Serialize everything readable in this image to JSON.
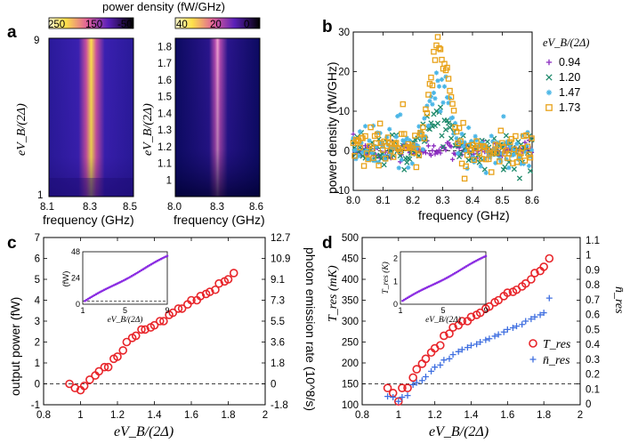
{
  "colors": {
    "axis": "#000000",
    "panel_b_series": [
      "#8a2bbf",
      "#1f8a6b",
      "#4bb6e6",
      "#e8a21a"
    ],
    "circle_marker": "#e8252a",
    "cross_marker": "#3f6fe0",
    "inset_marker": "#8a2be2",
    "heatmap_scale": [
      "#000000",
      "#1b0a6e",
      "#5a1fb8",
      "#a83bd0",
      "#e0609a",
      "#f59a5a",
      "#fde04a",
      "#fffacd"
    ]
  },
  "chart_data": [
    {
      "panel": "a",
      "type": "heatmap",
      "colorbar_title": "power density (fW/GHz)",
      "colorbar_ticks": [
        "250",
        "150",
        "-50"
      ],
      "xlabel": "frequency (GHz)",
      "ylabel": "eV_B/(2Δ)",
      "xlim": [
        8.1,
        8.5
      ],
      "ylim": [
        1,
        9
      ],
      "xticks": [
        "8.1",
        "8.3",
        "8.5"
      ],
      "yticks": [
        "1",
        "9"
      ],
      "peak_frequency": 8.29
    },
    {
      "panel": "a-right",
      "type": "heatmap",
      "colorbar_ticks": [
        "40",
        "20",
        "0"
      ],
      "xlabel": "frequency (GHz)",
      "ylabel": "eV_B/(2Δ)",
      "xlim": [
        8.0,
        8.6
      ],
      "ylim": [
        0.9,
        1.85
      ],
      "xticks": [
        "8.0",
        "8.3",
        "8.6"
      ],
      "yticks": [
        "1",
        "1.1",
        "1.2",
        "1.3",
        "1.4",
        "1.5",
        "1.6",
        "1.7",
        "1.8"
      ],
      "peak_frequency": 8.29
    },
    {
      "panel": "b",
      "type": "scatter",
      "xlabel": "frequency (GHz)",
      "ylabel": "power density (fW/GHz)",
      "xlim": [
        8.0,
        8.6
      ],
      "ylim": [
        -10,
        30
      ],
      "xticks": [
        "8.0",
        "8.1",
        "8.2",
        "8.3",
        "8.4",
        "8.5",
        "8.6"
      ],
      "yticks": [
        "-10",
        "0",
        "10",
        "20",
        "30"
      ],
      "legend_title": "eV_B/(2Δ)",
      "legend_position": "top-right",
      "series": [
        {
          "name": "0.94",
          "marker": "plus",
          "peak": 0.5,
          "width": 0.05,
          "noise": 1.5
        },
        {
          "name": "1.20",
          "marker": "x",
          "peak": 8,
          "width": 0.05,
          "noise": 2.5
        },
        {
          "name": "1.47",
          "marker": "asterisk",
          "peak": 19,
          "width": 0.045,
          "noise": 3
        },
        {
          "name": "1.73",
          "marker": "square",
          "peak": 27,
          "width": 0.045,
          "noise": 3
        }
      ]
    },
    {
      "panel": "c",
      "type": "scatter",
      "xlabel": "eV_B/(2Δ)",
      "ylabel": "output power (fW)",
      "ylabel_right": "photon emission rate (10^8/s)",
      "xlim": [
        0.8,
        2
      ],
      "ylim": [
        -1,
        7
      ],
      "xticks": [
        "0.8",
        "1",
        "1.2",
        "1.4",
        "1.6",
        "1.8",
        "2"
      ],
      "yticks": [
        "-1",
        "0",
        "1",
        "2",
        "3",
        "4",
        "5",
        "6",
        "7"
      ],
      "yticks_right": [
        "-1.8",
        "0",
        "1.8",
        "3.6",
        "5.5",
        "7.3",
        "9.1",
        "10.9",
        "12.7"
      ],
      "x": [
        0.94,
        0.97,
        1.0,
        1.02,
        1.05,
        1.08,
        1.1,
        1.13,
        1.15,
        1.18,
        1.2,
        1.23,
        1.25,
        1.28,
        1.3,
        1.33,
        1.35,
        1.38,
        1.4,
        1.43,
        1.45,
        1.48,
        1.5,
        1.53,
        1.55,
        1.58,
        1.6,
        1.63,
        1.65,
        1.68,
        1.7,
        1.73,
        1.75,
        1.78,
        1.8,
        1.83
      ],
      "y": [
        0.0,
        -0.2,
        -0.3,
        -0.1,
        0.2,
        0.4,
        0.6,
        0.8,
        0.8,
        1.2,
        1.3,
        1.6,
        2.0,
        2.2,
        2.3,
        2.6,
        2.6,
        2.7,
        2.8,
        3.0,
        3.0,
        3.3,
        3.4,
        3.6,
        3.6,
        3.8,
        4.0,
        4.0,
        4.2,
        4.3,
        4.4,
        4.5,
        4.8,
        4.9,
        5.0,
        5.3
      ],
      "inset": {
        "xlabel": "eV_B/(2Δ)",
        "ylabel": "(fW)",
        "xlim": [
          1,
          9
        ],
        "ylim": [
          0,
          48
        ],
        "xticks": [
          "1",
          "5",
          "9"
        ],
        "yticks": [
          "0",
          "24",
          "48"
        ],
        "x_start": 1.2,
        "x_end": 9,
        "y_start": 3,
        "y_end": 44
      }
    },
    {
      "panel": "d",
      "type": "scatter",
      "xlabel": "eV_B/(2Δ)",
      "ylabel": "T_res (mK)",
      "ylabel_right": "n̄_res",
      "xlim": [
        0.8,
        2
      ],
      "ylim": [
        100,
        500
      ],
      "xticks": [
        "0.8",
        "1",
        "1.2",
        "1.4",
        "1.6",
        "1.8",
        "2"
      ],
      "yticks": [
        "100",
        "150",
        "200",
        "250",
        "300",
        "350",
        "400",
        "450",
        "500"
      ],
      "yticks_right": [
        "0",
        "0.1",
        "0.2",
        "0.3",
        "0.4",
        "0.5",
        "0.6",
        "0.7",
        "0.8",
        "0.9",
        "1",
        "1.1"
      ],
      "legend_position": "center-right",
      "series": [
        {
          "name": "T_res",
          "marker": "circle",
          "x": [
            0.94,
            0.97,
            1.0,
            1.02,
            1.05,
            1.08,
            1.1,
            1.13,
            1.15,
            1.18,
            1.2,
            1.23,
            1.25,
            1.28,
            1.3,
            1.33,
            1.35,
            1.38,
            1.4,
            1.43,
            1.45,
            1.48,
            1.5,
            1.53,
            1.55,
            1.58,
            1.6,
            1.63,
            1.65,
            1.68,
            1.7,
            1.73,
            1.75,
            1.78,
            1.8,
            1.83
          ],
          "y": [
            140,
            128,
            108,
            140,
            140,
            165,
            185,
            198,
            210,
            225,
            235,
            242,
            265,
            270,
            285,
            290,
            300,
            300,
            310,
            315,
            320,
            330,
            335,
            345,
            350,
            360,
            368,
            370,
            375,
            383,
            390,
            400,
            415,
            420,
            430,
            450
          ]
        },
        {
          "name": "n̄_res",
          "marker": "plus",
          "x": [
            0.94,
            0.97,
            1.0,
            1.02,
            1.05,
            1.08,
            1.1,
            1.13,
            1.15,
            1.18,
            1.2,
            1.23,
            1.25,
            1.28,
            1.3,
            1.33,
            1.35,
            1.38,
            1.4,
            1.43,
            1.45,
            1.48,
            1.5,
            1.53,
            1.55,
            1.58,
            1.6,
            1.63,
            1.65,
            1.68,
            1.7,
            1.73,
            1.75,
            1.78,
            1.8,
            1.83
          ],
          "y": [
            120,
            118,
            108,
            118,
            122,
            148,
            153,
            158,
            167,
            180,
            190,
            195,
            207,
            210,
            220,
            227,
            232,
            237,
            242,
            245,
            250,
            255,
            258,
            264,
            268,
            274,
            280,
            284,
            288,
            292,
            300,
            305,
            310,
            315,
            320,
            355
          ]
        }
      ],
      "inset": {
        "xlabel": "eV_B/(2Δ)",
        "ylabel": "T_res (K)",
        "xlim": [
          1,
          9
        ],
        "ylim": [
          0,
          2.3
        ],
        "xticks": [
          "1",
          "5",
          "9"
        ],
        "yticks": [
          "0",
          "1",
          "2"
        ],
        "x_start": 1.2,
        "x_end": 9,
        "y_start": 0.15,
        "y_end": 2.1
      }
    }
  ]
}
